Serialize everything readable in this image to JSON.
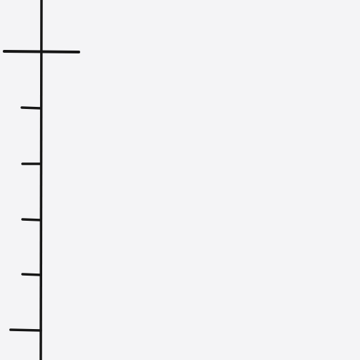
{
  "ruler": {
    "orientation": "vertical",
    "color": "#161616",
    "background": "#f4f4f6",
    "tick_count": 5,
    "crosshair_present": true
  }
}
